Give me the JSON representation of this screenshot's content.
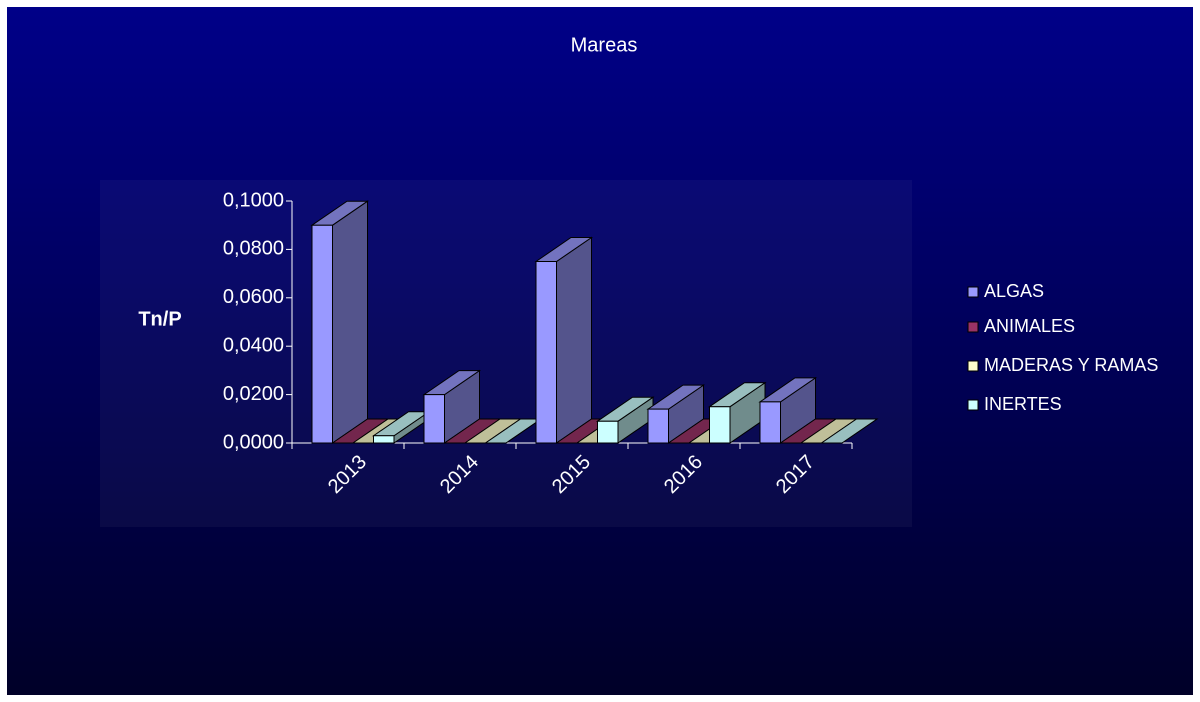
{
  "chart_data": {
    "type": "bar3d",
    "title": "Mareas",
    "y_label": "Tn/P",
    "categories": [
      "2013",
      "2014",
      "2015",
      "2016",
      "2017"
    ],
    "series": [
      {
        "name": "ALGAS",
        "color": "#9999ff",
        "values": [
          0.09,
          0.02,
          0.075,
          0.014,
          0.017
        ]
      },
      {
        "name": "ANIMALES",
        "color": "#993366",
        "values": [
          0,
          0,
          0,
          0,
          0
        ]
      },
      {
        "name": "MADERAS Y RAMAS",
        "color": "#ffffcc",
        "values": [
          0,
          0,
          0,
          0,
          0
        ]
      },
      {
        "name": "INERTES",
        "color": "#ccffff",
        "values": [
          0.003,
          0,
          0.009,
          0.015,
          0
        ]
      }
    ],
    "ylim": [
      0,
      0.1
    ],
    "yticks": [
      {
        "value": 0,
        "label": "0,0000"
      },
      {
        "value": 0.02,
        "label": "0,0200"
      },
      {
        "value": 0.04,
        "label": "0,0400"
      },
      {
        "value": 0.06,
        "label": "0,0600"
      },
      {
        "value": 0.08,
        "label": "0,0800"
      },
      {
        "value": 0.1,
        "label": "0,1000"
      }
    ],
    "legend": "right"
  }
}
